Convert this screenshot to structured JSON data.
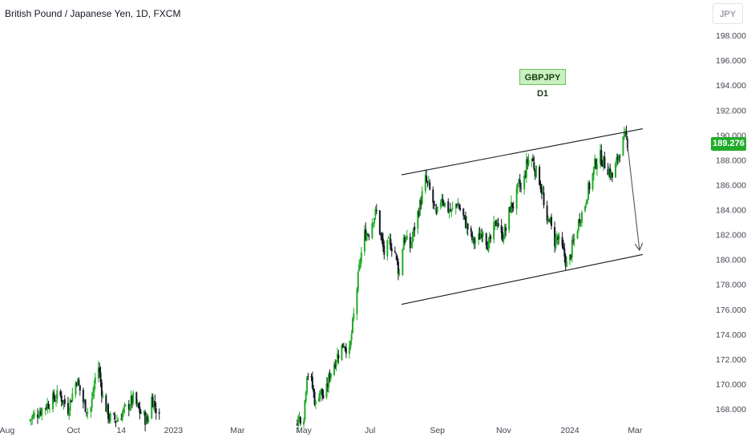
{
  "header": {
    "title": "British Pound / Japanese Yen, 1D, FXCM",
    "currency": "JPY"
  },
  "badge": {
    "label": "GBPJPY D1"
  },
  "last_price": {
    "label": "189.276",
    "value": 189.276,
    "color": "#22ab2a"
  },
  "colors": {
    "up": "#22ab2a",
    "down": "#131722",
    "trendline": "#131722",
    "arrow": "#555555"
  },
  "chart_data": {
    "type": "candlestick",
    "symbol": "GBPJPY",
    "timeframe": "1D",
    "ylim": [
      167,
      200
    ],
    "y_ticks": [
      "198.000",
      "196.000",
      "194.000",
      "192.000",
      "190.000",
      "188.000",
      "186.000",
      "184.000",
      "182.000",
      "180.000",
      "178.000",
      "176.000",
      "174.000",
      "172.000",
      "170.000",
      "168.000"
    ],
    "x_ticks": [
      "Aug",
      "Oct",
      "14",
      "2023",
      "Mar",
      "May",
      "Jul",
      "Sep",
      "Nov",
      "2024",
      "Mar"
    ],
    "x_tick_dates": [
      "2022-08-01",
      "2022-10-01",
      "2022-11-14",
      "2023-01-01",
      "2023-03-01",
      "2023-05-01",
      "2023-07-01",
      "2023-09-01",
      "2023-11-01",
      "2024-01-01",
      "2024-03-01"
    ],
    "close_path": [
      [
        "2022-08-20",
        167.0
      ],
      [
        "2022-09-18",
        169.2
      ],
      [
        "2022-09-26",
        168.0
      ],
      [
        "2022-10-04",
        170.4
      ],
      [
        "2022-10-10",
        168.6
      ],
      [
        "2022-10-16",
        167.5
      ],
      [
        "2022-10-21",
        170.5
      ],
      [
        "2022-10-24",
        171.4
      ],
      [
        "2022-10-28",
        168.9
      ],
      [
        "2022-11-03",
        167.3
      ],
      [
        "2022-11-10",
        167.1
      ],
      [
        "2022-11-25",
        168.8
      ],
      [
        "2022-12-01",
        167.8
      ],
      [
        "2022-12-08",
        167.0
      ],
      [
        "2022-12-12",
        168.9
      ],
      [
        "2022-12-18",
        167.6
      ],
      [
        "2022-12-20",
        166.9
      ],
      [
        "2023-04-25",
        167.2
      ],
      [
        "2023-05-01",
        167.5
      ],
      [
        "2023-05-04",
        171.0
      ],
      [
        "2023-05-08",
        170.2
      ],
      [
        "2023-05-12",
        168.3
      ],
      [
        "2023-05-16",
        169.6
      ],
      [
        "2023-05-20",
        168.7
      ],
      [
        "2023-05-25",
        170.8
      ],
      [
        "2023-06-01",
        172.3
      ],
      [
        "2023-06-07",
        173.3
      ],
      [
        "2023-06-12",
        172.5
      ],
      [
        "2023-06-16",
        175.5
      ],
      [
        "2023-06-22",
        180.0
      ],
      [
        "2023-06-26",
        182.0
      ],
      [
        "2023-06-30",
        182.2
      ],
      [
        "2023-07-04",
        183.4
      ],
      [
        "2023-07-07",
        183.8
      ],
      [
        "2023-07-11",
        181.8
      ],
      [
        "2023-07-14",
        180.5
      ],
      [
        "2023-07-19",
        181.4
      ],
      [
        "2023-07-24",
        180.6
      ],
      [
        "2023-07-28",
        178.8
      ],
      [
        "2023-08-01",
        181.8
      ],
      [
        "2023-08-07",
        181.0
      ],
      [
        "2023-08-12",
        183.0
      ],
      [
        "2023-08-16",
        184.4
      ],
      [
        "2023-08-21",
        186.4
      ],
      [
        "2023-08-24",
        185.8
      ],
      [
        "2023-08-28",
        184.6
      ],
      [
        "2023-08-31",
        183.4
      ],
      [
        "2023-09-05",
        185.1
      ],
      [
        "2023-09-09",
        184.2
      ],
      [
        "2023-09-14",
        183.8
      ],
      [
        "2023-09-19",
        184.6
      ],
      [
        "2023-09-24",
        183.6
      ],
      [
        "2023-09-29",
        182.5
      ],
      [
        "2023-10-04",
        181.4
      ],
      [
        "2023-10-09",
        181.7
      ],
      [
        "2023-10-13",
        182.5
      ],
      [
        "2023-10-18",
        181.0
      ],
      [
        "2023-10-22",
        182.2
      ],
      [
        "2023-10-26",
        183.2
      ],
      [
        "2023-10-30",
        181.8
      ],
      [
        "2023-11-03",
        182.4
      ],
      [
        "2023-11-07",
        184.2
      ],
      [
        "2023-11-11",
        184.5
      ],
      [
        "2023-11-15",
        186.0
      ],
      [
        "2023-11-18",
        185.4
      ],
      [
        "2023-11-22",
        187.6
      ],
      [
        "2023-11-26",
        188.4
      ],
      [
        "2023-11-30",
        187.2
      ],
      [
        "2023-12-04",
        186.4
      ],
      [
        "2023-12-07",
        185.2
      ],
      [
        "2023-12-10",
        182.2
      ],
      [
        "2023-12-13",
        183.5
      ],
      [
        "2023-12-17",
        181.3
      ],
      [
        "2023-12-20",
        181.8
      ],
      [
        "2023-12-24",
        181.0
      ],
      [
        "2023-12-27",
        180.3
      ],
      [
        "2023-12-30",
        179.2
      ],
      [
        "2024-01-03",
        181.0
      ],
      [
        "2024-01-07",
        182.2
      ],
      [
        "2024-01-10",
        183.4
      ],
      [
        "2024-01-14",
        184.0
      ],
      [
        "2024-01-17",
        185.4
      ],
      [
        "2024-01-21",
        186.4
      ],
      [
        "2024-01-24",
        187.6
      ],
      [
        "2024-01-28",
        188.4
      ],
      [
        "2024-02-01",
        187.8
      ],
      [
        "2024-02-05",
        187.3
      ],
      [
        "2024-02-09",
        186.6
      ],
      [
        "2024-02-13",
        187.8
      ],
      [
        "2024-02-17",
        189.1
      ],
      [
        "2024-02-21",
        189.8
      ],
      [
        "2024-02-24",
        189.276
      ]
    ],
    "annotations": [
      {
        "type": "trendline",
        "from": [
          "2023-07-30",
          186.8
        ],
        "to": [
          "2024-03-08",
          190.5
        ]
      },
      {
        "type": "trendline",
        "from": [
          "2023-07-30",
          176.4
        ],
        "to": [
          "2024-03-08",
          180.4
        ]
      },
      {
        "type": "arrow",
        "from": [
          "2024-02-22",
          190.0
        ],
        "to": [
          "2024-03-05",
          180.8
        ]
      }
    ]
  }
}
